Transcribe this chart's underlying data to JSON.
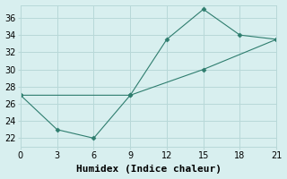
{
  "line1_x": [
    0,
    9,
    12,
    15,
    18,
    21
  ],
  "line1_y": [
    27,
    27,
    33.5,
    37,
    34,
    33.5
  ],
  "line2_x": [
    0,
    3,
    6,
    9,
    15,
    21
  ],
  "line2_y": [
    27,
    23,
    22,
    27,
    30,
    33.5
  ],
  "line_color": "#2e7d6e",
  "marker_color": "#2e7d6e",
  "background_color": "#d8efef",
  "grid_color": "#b8d8d8",
  "xlabel": "Humidex (Indice chaleur)",
  "xlim": [
    0,
    21
  ],
  "ylim": [
    21,
    37.5
  ],
  "xticks": [
    0,
    3,
    6,
    9,
    12,
    15,
    18,
    21
  ],
  "yticks": [
    22,
    24,
    26,
    28,
    30,
    32,
    34,
    36
  ],
  "tick_fontsize": 7,
  "xlabel_fontsize": 8
}
